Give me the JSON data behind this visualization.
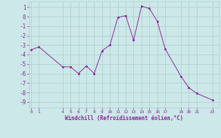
{
  "x": [
    0,
    1,
    4,
    5,
    6,
    7,
    8,
    9,
    10,
    11,
    12,
    13,
    14,
    15,
    16,
    17,
    19,
    20,
    21,
    23
  ],
  "y": [
    -3.5,
    -3.2,
    -5.3,
    -5.3,
    -6.0,
    -5.2,
    -6.0,
    -3.6,
    -3.0,
    -0.1,
    0.1,
    -2.5,
    1.1,
    0.85,
    -0.5,
    -3.4,
    -6.3,
    -7.5,
    -8.1,
    -8.8
  ],
  "line_color": "#882299",
  "marker_color": "#882299",
  "bg_color": "#cce8e8",
  "grid_color": "#aacccc",
  "xlabel": "Windchill (Refroidissement éolien,°C)",
  "yticks": [
    1,
    0,
    -1,
    -2,
    -3,
    -4,
    -5,
    -6,
    -7,
    -8,
    -9
  ],
  "xticks": [
    0,
    1,
    4,
    5,
    6,
    7,
    8,
    9,
    10,
    11,
    12,
    13,
    14,
    15,
    16,
    17,
    19,
    20,
    21,
    23
  ],
  "ylim": [
    -9.6,
    1.6
  ],
  "xlim": [
    -0.3,
    23.8
  ]
}
